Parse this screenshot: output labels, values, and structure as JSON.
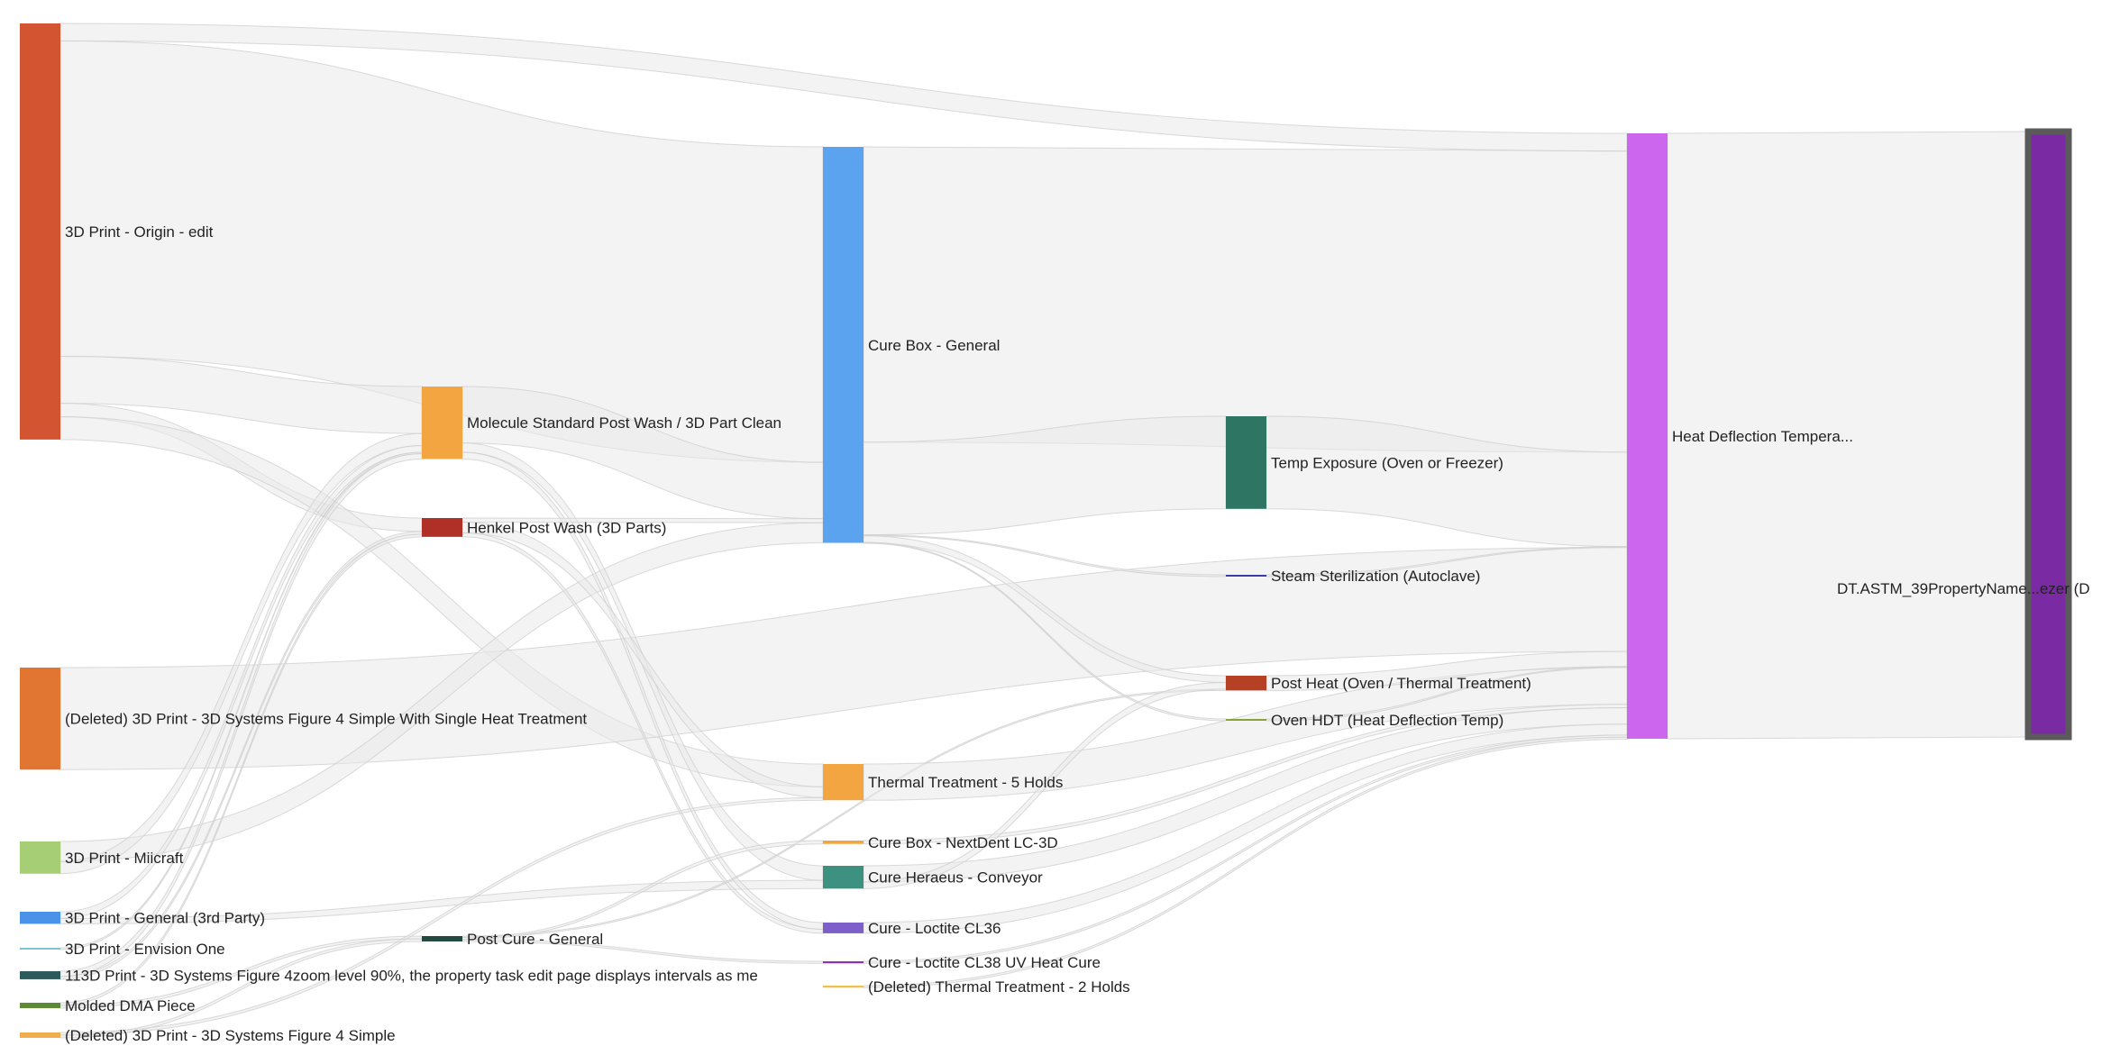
{
  "chart_data": {
    "type": "sankey",
    "title": "",
    "colors": {
      "link_fill": "#e9e9e9",
      "link_stroke": "#cfcfcf",
      "label_text": "#222222",
      "final_node_border": "#5a5a5a"
    },
    "nodes": [
      {
        "id": "origin",
        "label": "3D Print - Origin - edit",
        "column": 0,
        "value": 620,
        "color": "#d35430"
      },
      {
        "id": "deleted_single_heat",
        "label": "(Deleted) 3D Print - 3D Systems Figure 4 Simple With Single Heat Treatment",
        "column": 0,
        "value": 152,
        "color": "#e07632"
      },
      {
        "id": "miicraft",
        "label": "3D Print - Miicraft",
        "column": 0,
        "value": 48,
        "color": "#a6cf75"
      },
      {
        "id": "general_3rd",
        "label": "3D Print - General (3rd Party)",
        "column": 0,
        "value": 18,
        "color": "#4b93e8"
      },
      {
        "id": "envision",
        "label": "3D Print - Envision One",
        "column": 0,
        "value": 2,
        "color": "#7ec4d6"
      },
      {
        "id": "figure4zoom",
        "label": "113D Print - 3D Systems Figure 4zoom level 90%, the property task edit page displays intervals as me",
        "column": 0,
        "value": 12,
        "color": "#2d5a5a"
      },
      {
        "id": "molded_dma",
        "label": "Molded DMA Piece",
        "column": 0,
        "value": 8,
        "color": "#5e8a35"
      },
      {
        "id": "deleted_simple",
        "label": "(Deleted) 3D Print - 3D Systems Figure 4 Simple",
        "column": 0,
        "value": 8,
        "color": "#f0ad4e"
      },
      {
        "id": "molecule_wash",
        "label": "Molecule Standard Post Wash / 3D Part Clean",
        "column": 1,
        "value": 108,
        "color": "#f2a541"
      },
      {
        "id": "henkel_wash",
        "label": "Henkel Post Wash (3D Parts)",
        "column": 1,
        "value": 28,
        "color": "#b03028"
      },
      {
        "id": "post_cure_general",
        "label": "Post Cure - General",
        "column": 1,
        "value": 8,
        "color": "#224a3e"
      },
      {
        "id": "cure_box_general",
        "label": "Cure Box - General",
        "column": 2,
        "value": 590,
        "color": "#5ba3ee"
      },
      {
        "id": "thermal_5_holds",
        "label": "Thermal Treatment - 5 Holds",
        "column": 2,
        "value": 54,
        "color": "#f2a541"
      },
      {
        "id": "cure_box_nextdent",
        "label": "Cure Box - NextDent LC-3D",
        "column": 2,
        "value": 5,
        "color": "#f2a541"
      },
      {
        "id": "cure_heraeus",
        "label": "Cure Heraeus - Conveyor",
        "column": 2,
        "value": 34,
        "color": "#3d9180"
      },
      {
        "id": "cure_loctite_cl36",
        "label": "Cure - Loctite CL36",
        "column": 2,
        "value": 16,
        "color": "#7e5ec9"
      },
      {
        "id": "cure_loctite_cl38",
        "label": "Cure - Loctite CL38 UV Heat Cure",
        "column": 2,
        "value": 3,
        "color": "#8a32b8"
      },
      {
        "id": "deleted_thermal_2",
        "label": "(Deleted) Thermal Treatment - 2 Holds",
        "column": 2,
        "value": 3,
        "color": "#f0c04a"
      },
      {
        "id": "temp_exposure",
        "label": "Temp Exposure (Oven or Freezer)",
        "column": 3,
        "value": 138,
        "color": "#2e7563"
      },
      {
        "id": "steam_sterilization",
        "label": "Steam Sterilization (Autoclave)",
        "column": 3,
        "value": 1,
        "color": "#3a3aa8"
      },
      {
        "id": "post_heat",
        "label": "Post Heat (Oven / Thermal Treatment)",
        "column": 3,
        "value": 22,
        "color": "#b54024"
      },
      {
        "id": "oven_hdt",
        "label": "Oven HDT (Heat Deflection Temp)",
        "column": 3,
        "value": 1,
        "color": "#8aa03c"
      },
      {
        "id": "hdt_astm",
        "label": "Heat Deflection Tempera...",
        "column": 4,
        "value": 902,
        "color": "#cc66ee"
      },
      {
        "id": "final_node",
        "label": "DT.ASTM_39PropertyName...ezer (D",
        "column": 5,
        "value": 902,
        "color": "#7a2aa3"
      }
    ],
    "links": [
      {
        "source": "origin",
        "target": "cure_box_general",
        "value": 470
      },
      {
        "source": "origin",
        "target": "molecule_wash",
        "value": 70
      },
      {
        "source": "origin",
        "target": "henkel_wash",
        "value": 20
      },
      {
        "source": "origin",
        "target": "thermal_5_holds",
        "value": 34
      },
      {
        "source": "origin",
        "target": "hdt_astm",
        "value": 26
      },
      {
        "source": "deleted_single_heat",
        "target": "hdt_astm",
        "value": 152
      },
      {
        "source": "miicraft",
        "target": "cure_box_general",
        "value": 30
      },
      {
        "source": "miicraft",
        "target": "molecule_wash",
        "value": 18
      },
      {
        "source": "general_3rd",
        "target": "molecule_wash",
        "value": 10
      },
      {
        "source": "general_3rd",
        "target": "cure_heraeus",
        "value": 8
      },
      {
        "source": "envision",
        "target": "molecule_wash",
        "value": 2
      },
      {
        "source": "figure4zoom",
        "target": "molecule_wash",
        "value": 8
      },
      {
        "source": "figure4zoom",
        "target": "henkel_wash",
        "value": 4
      },
      {
        "source": "molded_dma",
        "target": "post_cure_general",
        "value": 4
      },
      {
        "source": "molded_dma",
        "target": "henkel_wash",
        "value": 4
      },
      {
        "source": "deleted_simple",
        "target": "post_cure_general",
        "value": 4
      },
      {
        "source": "deleted_simple",
        "target": "thermal_5_holds",
        "value": 4
      },
      {
        "source": "molecule_wash",
        "target": "cure_box_general",
        "value": 84
      },
      {
        "source": "molecule_wash",
        "target": "cure_heraeus",
        "value": 14
      },
      {
        "source": "molecule_wash",
        "target": "cure_loctite_cl36",
        "value": 10
      },
      {
        "source": "henkel_wash",
        "target": "cure_box_general",
        "value": 6
      },
      {
        "source": "henkel_wash",
        "target": "cure_loctite_cl36",
        "value": 6
      },
      {
        "source": "henkel_wash",
        "target": "thermal_5_holds",
        "value": 16
      },
      {
        "source": "post_cure_general",
        "target": "post_heat",
        "value": 2
      },
      {
        "source": "post_cure_general",
        "target": "cure_box_nextdent",
        "value": 3
      },
      {
        "source": "post_cure_general",
        "target": "cure_loctite_cl38",
        "value": 3
      },
      {
        "source": "cure_box_general",
        "target": "hdt_astm",
        "value": 440
      },
      {
        "source": "cure_box_general",
        "target": "temp_exposure",
        "value": 138
      },
      {
        "source": "cure_box_general",
        "target": "steam_sterilization",
        "value": 1
      },
      {
        "source": "cure_box_general",
        "target": "post_heat",
        "value": 10
      },
      {
        "source": "cure_box_general",
        "target": "oven_hdt",
        "value": 1
      },
      {
        "source": "thermal_5_holds",
        "target": "hdt_astm",
        "value": 54
      },
      {
        "source": "cure_box_nextdent",
        "target": "hdt_astm",
        "value": 5
      },
      {
        "source": "cure_heraeus",
        "target": "hdt_astm",
        "value": 24
      },
      {
        "source": "cure_heraeus",
        "target": "post_heat",
        "value": 10
      },
      {
        "source": "cure_loctite_cl36",
        "target": "hdt_astm",
        "value": 16
      },
      {
        "source": "cure_loctite_cl38",
        "target": "hdt_astm",
        "value": 3
      },
      {
        "source": "deleted_thermal_2",
        "target": "hdt_astm",
        "value": 3
      },
      {
        "source": "temp_exposure",
        "target": "hdt_astm",
        "value": 138
      },
      {
        "source": "steam_sterilization",
        "target": "hdt_astm",
        "value": 1
      },
      {
        "source": "post_heat",
        "target": "hdt_astm",
        "value": 22
      },
      {
        "source": "oven_hdt",
        "target": "hdt_astm",
        "value": 1
      },
      {
        "source": "hdt_astm",
        "target": "final_node",
        "value": 902
      }
    ]
  }
}
